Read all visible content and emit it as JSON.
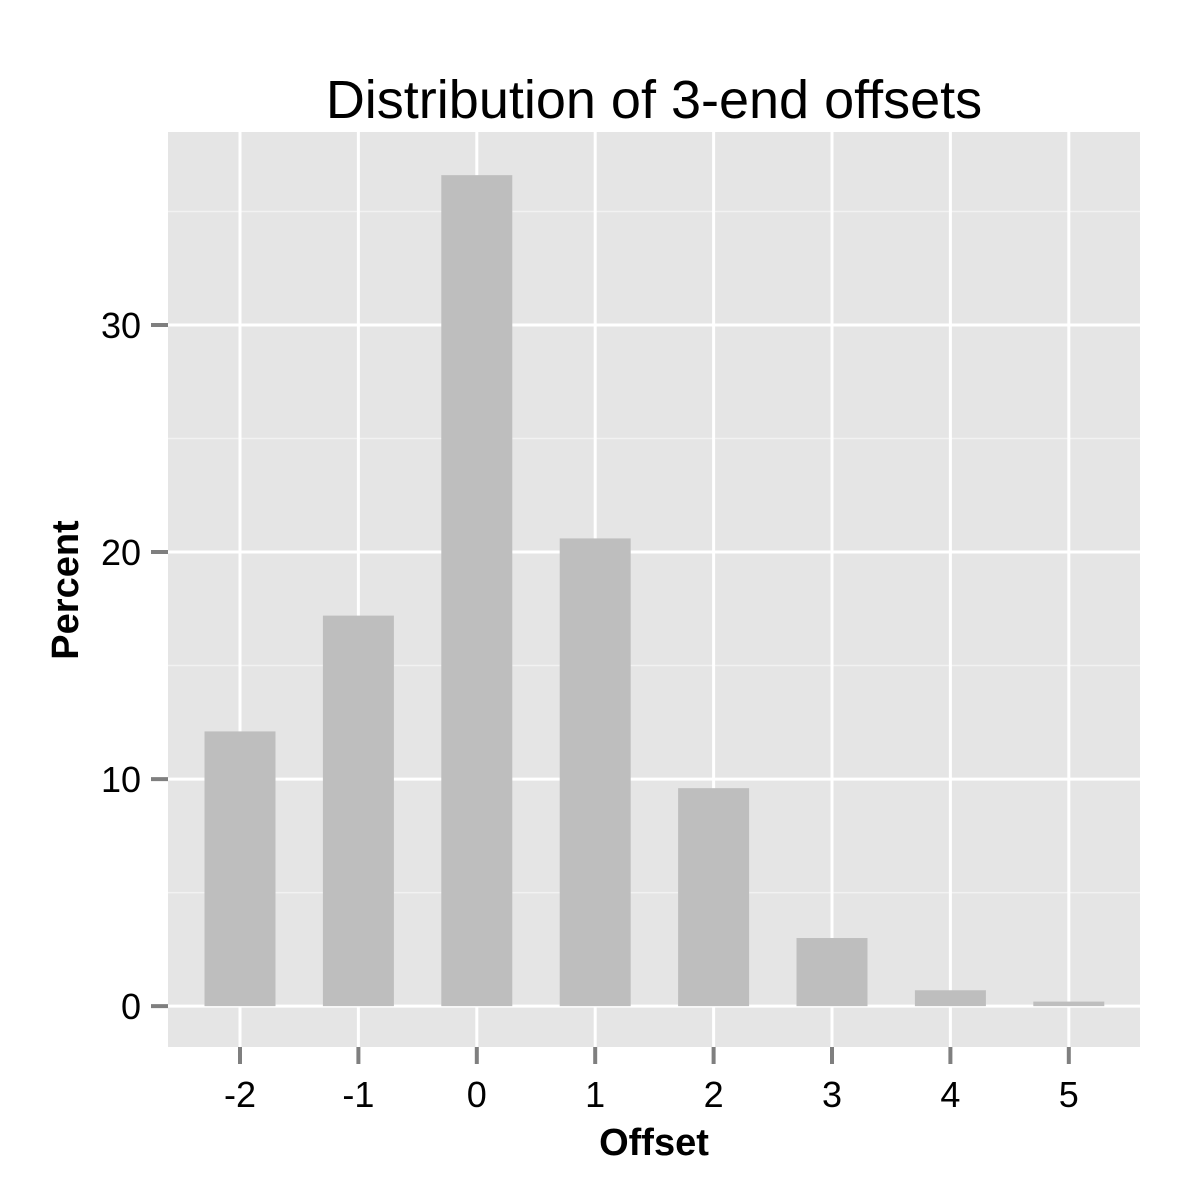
{
  "chart_data": {
    "type": "bar",
    "title": "Distribution of 3-end offsets",
    "xlabel": "Offset",
    "ylabel": "Percent",
    "categories": [
      "-2",
      "-1",
      "0",
      "1",
      "2",
      "3",
      "4",
      "5"
    ],
    "values": [
      12.1,
      17.2,
      36.6,
      20.6,
      9.6,
      3.0,
      0.7,
      0.2
    ],
    "ylim": [
      -1.8,
      38.5
    ],
    "yticks": [
      0,
      10,
      20,
      30
    ],
    "grid": true,
    "colors": {
      "panel_background": "#e5e5e5",
      "grid_major": "#ffffff",
      "grid_minor": "#f2f2f2",
      "bar_fill": "#bebebe",
      "tick_mark": "#7f7f7f"
    }
  }
}
